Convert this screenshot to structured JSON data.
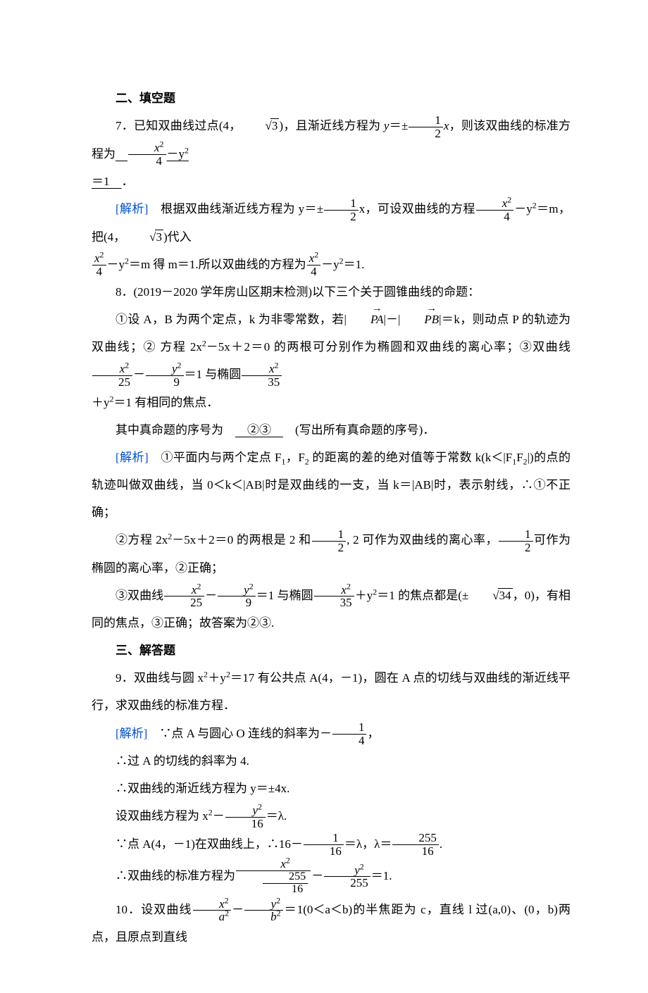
{
  "colors": {
    "text": "#000000",
    "accent": "#0050c8",
    "bg": "#ffffff"
  },
  "typography": {
    "body_fontsize_pt": 13,
    "line_height": 2.3,
    "family": "SimSun / Times New Roman"
  },
  "sec2_title": "二、填空题",
  "q7": {
    "prefix": "7．已知双曲线过点(4，",
    "pt_sqrt": "3",
    "mid1": ")，且渐近线方程为 ",
    "asym_lhs": "y",
    "asym_sign": "＝±",
    "asym_frac_num": "1",
    "asym_frac_den": "2",
    "asym_rhs": "x",
    "mid2": "，则该双曲线的标准方程为",
    "ans_frac_num": "x",
    "ans_frac_num_sup": "2",
    "ans_frac_den": "4",
    "ans_mid": "－y",
    "ans_sup": "2",
    "ans_tail_line2": "＝1",
    "period": "．"
  },
  "q7_sol": {
    "label": "[解析]　",
    "t1": "根据双曲线渐近线方程为 ",
    "t2": "y＝±",
    "f1_num": "1",
    "f1_den": "2",
    "t3": "x，可设双曲线的方程",
    "f2_num": "x",
    "f2_num_sup": "2",
    "f2_den": "4",
    "t4": "－y",
    "t4_sup": "2",
    "t5": "＝m，把(4，",
    "sqrt": "3",
    "t6": ")代入",
    "line2_f_num": "x",
    "line2_f_num_sup": "2",
    "line2_f_den": "4",
    "line2_a": "－y",
    "line2_a_sup": "2",
    "line2_b": "＝m 得 m＝1.所以双曲线的方程为",
    "line2_f2_num": "x",
    "line2_f2_num_sup": "2",
    "line2_f2_den": "4",
    "line2_c": "－y",
    "line2_c_sup": "2",
    "line2_d": "＝1."
  },
  "q8": {
    "head": "8．(2019－2020 学年房山区期末检测)以下三个关于圆锥曲线的命题：",
    "s1a": "①设 A，B 为两个定点，k 为非零常数，若|",
    "vec1": "PA",
    "s1b": "|－|",
    "vec2": "PB",
    "s1c": "|＝k，则动点 P 的轨迹为双曲线；②",
    "s2a": "方程 2x",
    "s2a_sup": "2",
    "s2b": "－5x＋2＝0 的两根可分别作为椭圆和双曲线的离心率；③双曲线",
    "s2_f1_num": "x",
    "s2_f1_num_sup": "2",
    "s2_f1_den": "25",
    "s2c": "－",
    "s2_f2_num": "y",
    "s2_f2_num_sup": "2",
    "s2_f2_den": "9",
    "s2d": "＝1 与椭圆",
    "s2_f3_num": "x",
    "s2_f3_num_sup": "2",
    "s2_f3_den": "35",
    "s3": "＋y",
    "s3_sup": "2",
    "s3b": "＝1 有相同的焦点．",
    "q": "其中真命题的序号为　",
    "ans": "②③",
    "qtail": "　(写出所有真命题的序号)．"
  },
  "q8_sol": {
    "label": "[解析]　",
    "p1": "①平面内与两个定点 F",
    "p1_sub1": "1",
    "p1b": "，F",
    "p1_sub2": "2",
    "p1c": " 的距离的差的绝对值等于常数 k(k＜|F",
    "p1_sub3": "1",
    "p1d": "F",
    "p1_sub4": "2",
    "p1e": "|)的点的轨迹叫做双曲线，当 0＜k＜|AB|时是双曲线的一支，当 k＝|AB|时，表示射线，∴①不正确；",
    "p2a": "②方程 2x",
    "p2a_sup": "2",
    "p2b": "－5x＋2＝0 的两根是 2 和",
    "p2_f1_num": "1",
    "p2_f1_den": "2",
    "p2c": ", 2 可作为双曲线的离心率，",
    "p2_f2_num": "1",
    "p2_f2_den": "2",
    "p2d": "可作为椭圆的离心率，②正确；",
    "p3a": "③双曲线",
    "p3_f1_num": "x",
    "p3_f1_num_sup": "2",
    "p3_f1_den": "25",
    "p3b": "－",
    "p3_f2_num": "y",
    "p3_f2_num_sup": "2",
    "p3_f2_den": "9",
    "p3c": "＝1 与椭圆",
    "p3_f3_num": "x",
    "p3_f3_num_sup": "2",
    "p3_f3_den": "35",
    "p3d": "＋y",
    "p3d_sup": "2",
    "p3e": "＝1 的焦点都是(±",
    "p3_sqrt": "34",
    "p3f": "，0)，有相同的焦点，③正确；故答案为②③."
  },
  "sec3_title": "三、解答题",
  "q9": {
    "head_a": "9．双曲线与圆 x",
    "head_a_sup": "2",
    "head_b": "＋y",
    "head_b_sup": "2",
    "head_c": "＝17 有公共点 A(4，－1)，圆在 A 点的切线与双曲线的渐近线平行，求双曲线的标准方程．"
  },
  "q9_sol": {
    "label": "[解析]　",
    "l1a": "∵点 A 与圆心 O 连线的斜率为－",
    "l1_f_num": "1",
    "l1_f_den": "4",
    "l1b": "，",
    "l2": "∴过 A 的切线的斜率为 4.",
    "l3": "∴双曲线的渐近线方程为 y＝±4x.",
    "l4a": "设双曲线方程为 x",
    "l4a_sup": "2",
    "l4b": "－",
    "l4_f_num": "y",
    "l4_f_num_sup": "2",
    "l4_f_den": "16",
    "l4c": "＝λ.",
    "l5a": "∵点 A(4，－1)在双曲线上，∴16－",
    "l5_f1_num": "1",
    "l5_f1_den": "16",
    "l5b": "＝λ，λ＝",
    "l5_f2_num": "255",
    "l5_f2_den": "16",
    "l5c": ".",
    "l6a": "∴双曲线的标准方程为",
    "l6_f1_num": "x",
    "l6_f1_num_sup": "2",
    "l6_f1_den_num": "255",
    "l6_f1_den_den": "16",
    "l6b": "－",
    "l6_f2_num": "y",
    "l6_f2_num_sup": "2",
    "l6_f2_den": "255",
    "l6c": "＝1."
  },
  "q10": {
    "a": "10．设双曲线",
    "f1_num": "x",
    "f1_num_sup": "2",
    "f1_den": "a",
    "f1_den_sup": "2",
    "b": "－",
    "f2_num": "y",
    "f2_num_sup": "2",
    "f2_den": "b",
    "f2_den_sup": "2",
    "c": "＝1(0＜a＜b)的半焦距为 c，直线 l 过(a,0)、(0，b)两点，且原点到直线"
  }
}
